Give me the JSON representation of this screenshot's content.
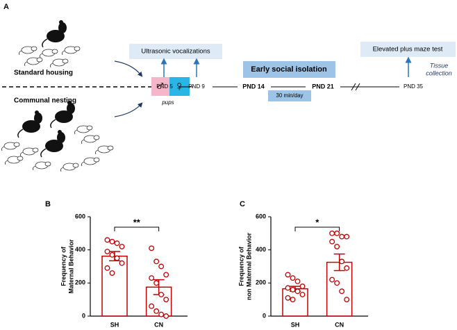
{
  "figure": {
    "panel_label": "A",
    "standard_housing": "Standard housing",
    "communal_nesting": "Communal nesting",
    "male": "♂",
    "female": "♀",
    "pups": "pups",
    "usv": "Ultrasonic vocalizations",
    "epm": "Elevated plus maze test",
    "tissue": [
      "Tissue",
      "collection"
    ],
    "isolation": "Early social isolation",
    "duration": "30 min/day",
    "timepoints": [
      "PND 5",
      "PND 9",
      "PND 14",
      "PND 21",
      "PND 35"
    ]
  },
  "chart_data": [
    {
      "type": "bar",
      "panel_label": "B",
      "ylabel": [
        "Frequency of",
        "Maternal Behavior"
      ],
      "categories": [
        "SH",
        "CN"
      ],
      "values": [
        362,
        175
      ],
      "errors": [
        28,
        45
      ],
      "points": [
        [
          460,
          450,
          440,
          420,
          390,
          370,
          350,
          320,
          290,
          260
        ],
        [
          410,
          330,
          300,
          250,
          230,
          200,
          130,
          100,
          60,
          30,
          10,
          0
        ]
      ],
      "significance": "**",
      "color": "#c00000",
      "ylim": [
        0,
        600
      ],
      "yticks": [
        0,
        200,
        400,
        600
      ]
    },
    {
      "type": "bar",
      "panel_label": "C",
      "ylabel": [
        "Frequency of",
        "non Maternal Behavior"
      ],
      "categories": [
        "SH",
        "CN"
      ],
      "values": [
        165,
        325
      ],
      "errors": [
        15,
        50
      ],
      "points": [
        [
          250,
          230,
          210,
          180,
          170,
          160,
          150,
          130,
          110,
          100
        ],
        [
          500,
          500,
          480,
          480,
          450,
          420,
          330,
          290,
          220,
          200,
          150,
          100
        ]
      ],
      "significance": "*",
      "color": "#c00000",
      "ylim": [
        0,
        600
      ],
      "yticks": [
        0,
        200,
        400,
        600
      ]
    }
  ]
}
